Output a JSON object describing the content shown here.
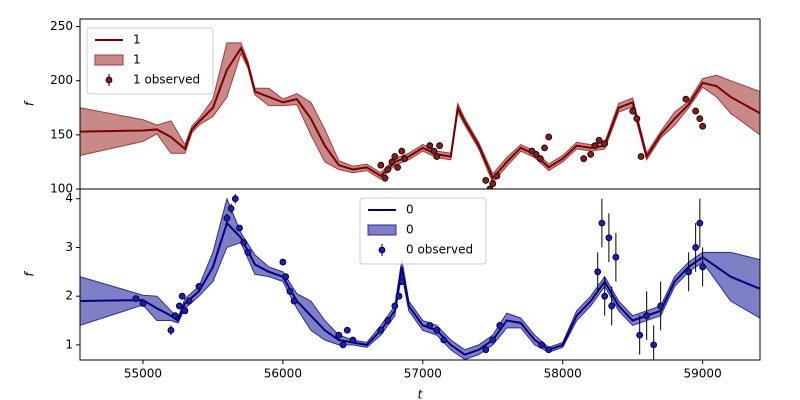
{
  "chart_data": [
    {
      "type": "line",
      "ylabel": "f",
      "xlim": [
        54550,
        59410
      ],
      "ylim": [
        100,
        257
      ],
      "yticks": [
        100,
        150,
        200,
        250
      ],
      "legend": "upper left",
      "x": [
        54550,
        55000,
        55100,
        55200,
        55300,
        55350,
        55400,
        55500,
        55600,
        55700,
        55750,
        55800,
        55900,
        56000,
        56100,
        56200,
        56300,
        56400,
        56500,
        56600,
        56700,
        56800,
        56900,
        57000,
        57100,
        57200,
        57250,
        57300,
        57400,
        57500,
        57600,
        57700,
        57800,
        57900,
        58000,
        58100,
        58200,
        58300,
        58400,
        58500,
        58600,
        58700,
        58800,
        58900,
        59000,
        59100,
        59200,
        59410
      ],
      "series": [
        {
          "name": "1",
          "type": "line",
          "color": "#7a0000",
          "values": [
            153,
            154,
            155,
            148,
            137,
            155,
            162,
            175,
            210,
            230,
            215,
            190,
            185,
            180,
            183,
            165,
            140,
            122,
            118,
            120,
            112,
            125,
            130,
            138,
            132,
            130,
            175,
            162,
            140,
            110,
            125,
            138,
            132,
            120,
            128,
            140,
            138,
            140,
            175,
            180,
            130,
            150,
            165,
            178,
            198,
            195,
            185,
            170
          ]
        },
        {
          "name": "1",
          "type": "band",
          "color": "#a33a3a",
          "lower": [
            131,
            144,
            151,
            133,
            133,
            152,
            159,
            167,
            185,
            225,
            212,
            187,
            177,
            177,
            178,
            150,
            125,
            118,
            115,
            117,
            109,
            122,
            127,
            135,
            129,
            127,
            171,
            159,
            137,
            106,
            121,
            135,
            129,
            117,
            125,
            137,
            135,
            137,
            171,
            176,
            127,
            147,
            159,
            175,
            194,
            185,
            170,
            150
          ],
          "upper": [
            175,
            164,
            159,
            163,
            141,
            158,
            165,
            183,
            235,
            235,
            218,
            193,
            193,
            183,
            188,
            180,
            155,
            126,
            121,
            123,
            115,
            128,
            133,
            141,
            135,
            133,
            179,
            165,
            143,
            114,
            129,
            141,
            135,
            123,
            131,
            143,
            141,
            143,
            179,
            184,
            133,
            153,
            171,
            181,
            202,
            205,
            200,
            190
          ]
        },
        {
          "name": "1 observed",
          "type": "errorbar",
          "color": "#8b1a1a",
          "x": [
            56700,
            56730,
            56750,
            56780,
            56800,
            56820,
            56850,
            56870,
            57050,
            57080,
            57100,
            57120,
            57450,
            57480,
            57500,
            57530,
            57780,
            57810,
            57840,
            57870,
            57900,
            58150,
            58200,
            58230,
            58260,
            58300,
            58500,
            58530,
            58560,
            58880,
            58950,
            58980,
            59000
          ],
          "values": [
            122,
            110,
            118,
            125,
            130,
            120,
            135,
            128,
            140,
            135,
            130,
            140,
            108,
            100,
            105,
            112,
            135,
            132,
            128,
            138,
            148,
            128,
            132,
            140,
            145,
            142,
            172,
            165,
            130,
            183,
            172,
            165,
            158
          ],
          "errors": [
            3,
            3,
            3,
            3,
            3,
            3,
            3,
            3,
            3,
            3,
            3,
            3,
            3,
            3,
            3,
            3,
            3,
            3,
            3,
            3,
            3,
            3,
            3,
            3,
            3,
            3,
            3,
            3,
            3,
            3,
            3,
            3,
            3
          ]
        }
      ]
    },
    {
      "type": "line",
      "ylabel": "f",
      "xlabel": "t",
      "xlim": [
        54550,
        59410
      ],
      "xticks": [
        55000,
        56000,
        57000,
        58000,
        59000
      ],
      "ylim": [
        0.69,
        4.2
      ],
      "yticks": [
        1,
        2,
        3,
        4
      ],
      "legend": "upper center",
      "x": [
        54550,
        55000,
        55100,
        55200,
        55250,
        55300,
        55400,
        55500,
        55600,
        55700,
        55800,
        55900,
        56000,
        56100,
        56200,
        56300,
        56400,
        56500,
        56600,
        56700,
        56800,
        56850,
        56900,
        57000,
        57100,
        57200,
        57300,
        57400,
        57500,
        57600,
        57700,
        57800,
        57900,
        58000,
        58100,
        58200,
        58300,
        58400,
        58500,
        58600,
        58700,
        58800,
        58900,
        59000,
        59100,
        59200,
        59410
      ],
      "series": [
        {
          "name": "0",
          "type": "line",
          "color": "#000080",
          "values": [
            1.9,
            1.92,
            1.75,
            1.6,
            1.5,
            1.85,
            2.1,
            2.6,
            3.5,
            3.2,
            2.65,
            2.5,
            2.4,
            1.9,
            1.6,
            1.3,
            1.1,
            1.05,
            1.0,
            1.3,
            1.7,
            2.6,
            1.8,
            1.4,
            1.3,
            1.0,
            0.8,
            0.9,
            1.1,
            1.5,
            1.45,
            1.1,
            0.9,
            1.0,
            1.6,
            1.9,
            2.3,
            1.8,
            1.5,
            1.6,
            1.7,
            2.3,
            2.6,
            2.8,
            2.6,
            2.4,
            2.15
          ]
        },
        {
          "name": "0",
          "type": "band",
          "color": "#2a2aa0",
          "lower": [
            1.4,
            1.82,
            1.5,
            1.5,
            1.45,
            1.75,
            2.0,
            2.3,
            3.0,
            3.1,
            2.45,
            2.4,
            2.3,
            1.75,
            1.3,
            1.1,
            1.0,
            1.0,
            0.95,
            1.2,
            1.6,
            2.45,
            1.7,
            1.3,
            1.2,
            0.9,
            0.7,
            0.8,
            1.0,
            1.35,
            1.35,
            1.0,
            0.85,
            0.95,
            1.5,
            1.8,
            2.2,
            1.7,
            1.4,
            1.5,
            1.6,
            2.2,
            2.5,
            2.7,
            2.3,
            1.9,
            1.55
          ],
          "upper": [
            2.4,
            2.02,
            2.0,
            1.7,
            1.55,
            1.95,
            2.2,
            2.9,
            4.0,
            3.3,
            2.85,
            2.6,
            2.5,
            2.05,
            1.9,
            1.5,
            1.2,
            1.1,
            1.05,
            1.4,
            1.8,
            2.75,
            1.9,
            1.5,
            1.4,
            1.1,
            0.9,
            1.0,
            1.2,
            1.65,
            1.55,
            1.2,
            0.95,
            1.05,
            1.7,
            2.0,
            2.4,
            1.9,
            1.6,
            1.7,
            1.8,
            2.4,
            2.7,
            2.9,
            2.9,
            2.9,
            2.75
          ]
        },
        {
          "name": "0 observed",
          "type": "errorbar",
          "color": "#1a1acc",
          "x": [
            54950,
            55000,
            55200,
            55230,
            55260,
            55280,
            55300,
            55330,
            55400,
            55600,
            55630,
            55660,
            55690,
            55720,
            55750,
            56000,
            56020,
            56050,
            56080,
            56400,
            56430,
            56460,
            56500,
            56700,
            56750,
            56800,
            56830,
            56850,
            57050,
            57100,
            57150,
            57450,
            57500,
            57550,
            57850,
            57900,
            58250,
            58280,
            58300,
            58330,
            58350,
            58380,
            58550,
            58600,
            58650,
            58700,
            58900,
            58950,
            58980,
            59000
          ],
          "values": [
            1.95,
            1.85,
            1.3,
            1.6,
            1.8,
            2.0,
            1.7,
            1.9,
            2.2,
            3.6,
            3.8,
            4.0,
            3.4,
            3.1,
            2.9,
            2.7,
            2.4,
            2.1,
            1.9,
            1.2,
            1.0,
            1.3,
            1.1,
            1.3,
            1.5,
            1.8,
            2.0,
            2.3,
            1.4,
            1.3,
            1.1,
            0.9,
            1.1,
            1.4,
            1.0,
            0.9,
            2.5,
            3.5,
            2.0,
            3.2,
            1.8,
            2.8,
            1.2,
            1.6,
            1.0,
            1.8,
            2.5,
            3.0,
            3.5,
            2.6
          ],
          "errors": [
            0.05,
            0.05,
            0.1,
            0.05,
            0.05,
            0.05,
            0.05,
            0.05,
            0.05,
            0.1,
            0.1,
            0.1,
            0.05,
            0.05,
            0.05,
            0.05,
            0.05,
            0.05,
            0.05,
            0.05,
            0.05,
            0.05,
            0.05,
            0.05,
            0.05,
            0.05,
            0.05,
            0.05,
            0.05,
            0.05,
            0.05,
            0.05,
            0.05,
            0.05,
            0.05,
            0.05,
            0.4,
            0.5,
            0.4,
            0.5,
            0.4,
            0.5,
            0.4,
            0.5,
            0.4,
            0.5,
            0.4,
            0.5,
            0.5,
            0.4
          ]
        }
      ]
    }
  ]
}
